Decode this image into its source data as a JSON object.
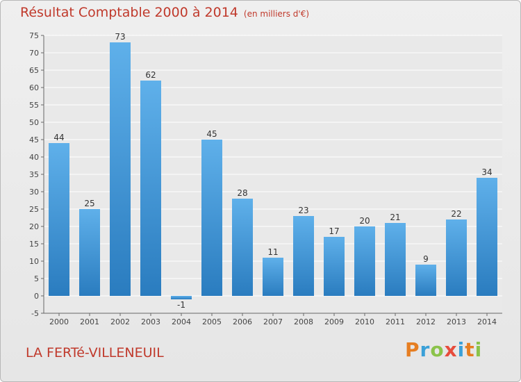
{
  "title": "Résultat Comptable 2000 à 2014",
  "subtitle": "(en milliers d'€)",
  "town": "LA FERTé-VILLENEUIL",
  "logo": "Proxiti",
  "colors": {
    "title": "#c0392b",
    "bar_light": "#5dade8",
    "bar_dark": "#2a7dc0",
    "background": "#e9e9e9",
    "grid": "#ffffff"
  },
  "chart_data": {
    "type": "bar",
    "categories": [
      "2000",
      "2001",
      "2002",
      "2003",
      "2004",
      "2005",
      "2006",
      "2007",
      "2008",
      "2009",
      "2010",
      "2011",
      "2012",
      "2013",
      "2014"
    ],
    "values": [
      44,
      25,
      73,
      62,
      -1,
      45,
      28,
      11,
      23,
      17,
      20,
      21,
      9,
      22,
      34
    ],
    "value_labels": [
      "44",
      "25",
      "73",
      "62",
      "-1",
      "45",
      "28",
      "11",
      "23",
      "17",
      "20",
      "21",
      "9",
      "22",
      "34"
    ],
    "ylim": [
      -5,
      75
    ],
    "yticks": [
      -5,
      0,
      5,
      10,
      15,
      20,
      25,
      30,
      35,
      40,
      45,
      50,
      55,
      60,
      65,
      70,
      75
    ],
    "grid": true
  }
}
